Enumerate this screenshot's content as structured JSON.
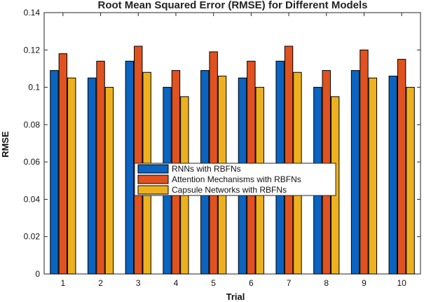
{
  "chart_data": {
    "type": "bar",
    "title": "Root Mean Squared Error (RMSE) for Different Models",
    "xlabel": "Trial",
    "ylabel": "RMSE",
    "categories": [
      "1",
      "2",
      "3",
      "4",
      "5",
      "6",
      "7",
      "8",
      "9",
      "10"
    ],
    "ylim": [
      0,
      0.14
    ],
    "yticks": [
      0,
      0.02,
      0.04,
      0.06,
      0.08,
      0.1,
      0.12,
      0.14
    ],
    "ytick_labels": [
      "0",
      "0.02",
      "0.04",
      "0.06",
      "0.08",
      "0.1",
      "0.12",
      "0.14"
    ],
    "grid": false,
    "legend_position": "center",
    "series": [
      {
        "name": "RNNs with RBFNs",
        "color": "#0a64c0",
        "values": [
          0.109,
          0.105,
          0.114,
          0.1,
          0.109,
          0.105,
          0.114,
          0.1,
          0.109,
          0.106
        ]
      },
      {
        "name": "Attention Mechanisms with RBFNs",
        "color": "#e0521f",
        "values": [
          0.118,
          0.114,
          0.122,
          0.109,
          0.119,
          0.114,
          0.122,
          0.109,
          0.12,
          0.115
        ]
      },
      {
        "name": "Capsule Networks with RBFNs",
        "color": "#edb120",
        "values": [
          0.105,
          0.1,
          0.108,
          0.095,
          0.106,
          0.1,
          0.108,
          0.095,
          0.105,
          0.1
        ]
      }
    ]
  }
}
